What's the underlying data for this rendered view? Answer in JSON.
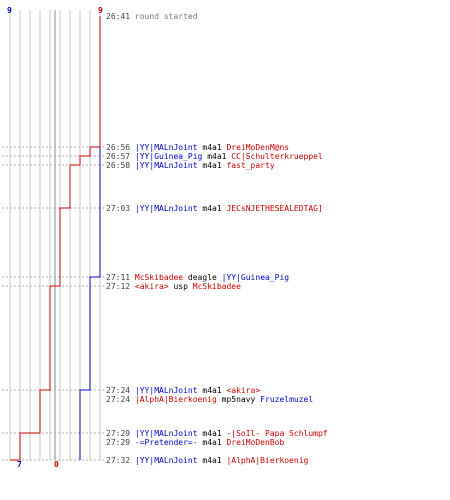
{
  "colors": {
    "blue_team": "#0000cc",
    "red_team": "#cc0000",
    "grid": "#c8c8c8",
    "timestamp": "#444444",
    "weapon": "#000000"
  },
  "top_scores": {
    "blue": "9",
    "red": "9"
  },
  "bottom_scores": {
    "blue": "7",
    "red": "0"
  },
  "chart_data": {
    "type": "line",
    "x_axis": "player count",
    "xlim": [
      0,
      9
    ],
    "series": [
      {
        "team": "blue",
        "color": "#0000cc",
        "points": [
          {
            "t": "26:41",
            "v": 9
          },
          {
            "t": "27:11",
            "v": 9
          },
          {
            "t": "27:11",
            "v": 8
          },
          {
            "t": "27:24",
            "v": 8
          },
          {
            "t": "27:24",
            "v": 7
          },
          {
            "t": "27:32",
            "v": 7
          }
        ]
      },
      {
        "team": "red",
        "color": "#cc0000",
        "points": [
          {
            "t": "26:41",
            "v": 9
          },
          {
            "t": "26:56",
            "v": 9
          },
          {
            "t": "26:56",
            "v": 8
          },
          {
            "t": "26:57",
            "v": 8
          },
          {
            "t": "26:57",
            "v": 7
          },
          {
            "t": "26:58",
            "v": 7
          },
          {
            "t": "26:58",
            "v": 6
          },
          {
            "t": "27:03",
            "v": 6
          },
          {
            "t": "27:03",
            "v": 5
          },
          {
            "t": "27:12",
            "v": 5
          },
          {
            "t": "27:12",
            "v": 4
          },
          {
            "t": "27:24",
            "v": 4
          },
          {
            "t": "27:24",
            "v": 3
          },
          {
            "t": "27:29",
            "v": 3
          },
          {
            "t": "27:29",
            "v": 2
          },
          {
            "t": "27:29",
            "v": 1
          },
          {
            "t": "27:32",
            "v": 1
          },
          {
            "t": "27:32",
            "v": 0
          }
        ]
      }
    ]
  },
  "events": [
    {
      "time": "26:41",
      "message": "round started"
    },
    {
      "time": "26:56",
      "killer": "|YY|MALnJoint",
      "killer_team": "blue",
      "weapon": "m4a1",
      "victim": "DreiMoDenM@ns",
      "victim_team": "red"
    },
    {
      "time": "26:57",
      "killer": "|YY|Guinea_Pig",
      "killer_team": "blue",
      "weapon": "m4a1",
      "victim": "CC|Schulterkrueppel",
      "victim_team": "red"
    },
    {
      "time": "26:58",
      "killer": "|YY|MALnJoint",
      "killer_team": "blue",
      "weapon": "m4a1",
      "victim": "fast_party",
      "victim_team": "red"
    },
    {
      "time": "27:03",
      "killer": "|YY|MALnJoint",
      "killer_team": "blue",
      "weapon": "m4a1",
      "victim": "JECsNJETHESEALEDTAG]",
      "victim_team": "red"
    },
    {
      "time": "27:11",
      "killer": "McSkibadee",
      "killer_team": "red",
      "weapon": "deagle",
      "victim": "|YY|Guinea_Pig",
      "victim_team": "blue"
    },
    {
      "time": "27:12",
      "killer": "<akira>",
      "killer_team": "red",
      "weapon": "usp",
      "victim": "McSkibadee",
      "victim_team": "red"
    },
    {
      "time": "27:24",
      "killer": "|YY|MALnJoint",
      "killer_team": "blue",
      "weapon": "m4a1",
      "victim": "<akira>",
      "victim_team": "red"
    },
    {
      "time": "27:24",
      "killer": "|AlphA|Bierkoenig",
      "killer_team": "red",
      "weapon": "mp5navy",
      "victim": "Fruzelmuzel",
      "victim_team": "blue"
    },
    {
      "time": "27:29",
      "killer": "|YY|MALnJoint",
      "killer_team": "blue",
      "weapon": "m4a1",
      "victim": "-|SoIl- Papa Schlumpf",
      "victim_team": "red"
    },
    {
      "time": "27:29",
      "killer": "-=Pretender=-",
      "killer_team": "blue",
      "weapon": "m4a1",
      "victim": "DreiMoDenBob",
      "victim_team": "red"
    },
    {
      "time": "27:32",
      "killer": "|YY|MALnJoint",
      "killer_team": "blue",
      "weapon": "m4a1",
      "victim": "|AlphA|Bierkoenig",
      "victim_team": "red"
    }
  ]
}
